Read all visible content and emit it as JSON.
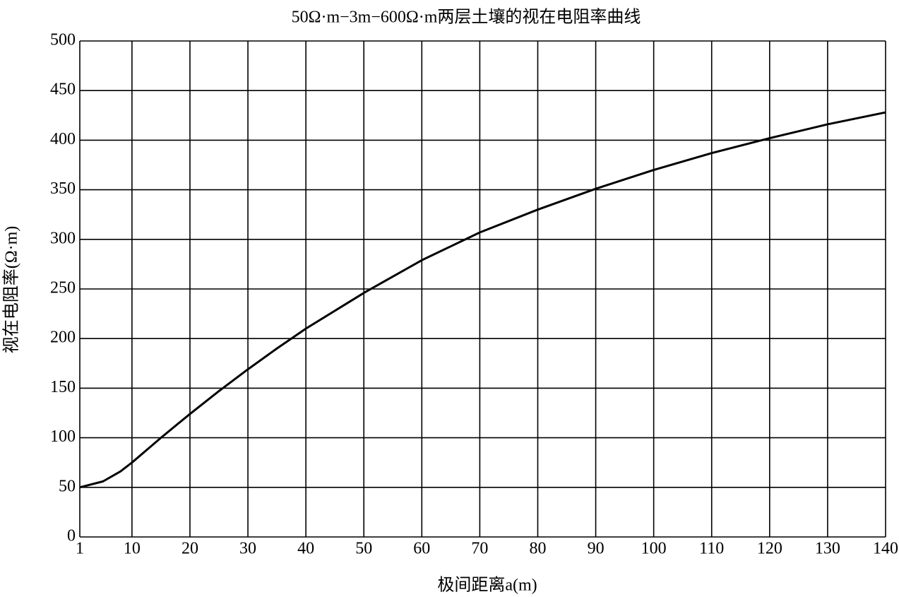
{
  "chart_data": {
    "type": "line",
    "title": "50Ω·m−3m−600Ω·m两层土壤的视在电阻率曲线",
    "x_label": "极间距离a(m)",
    "y_label": "视在电阻率(Ω·m)",
    "x": [
      1,
      5,
      8,
      10,
      15,
      20,
      25,
      30,
      35,
      40,
      50,
      60,
      70,
      80,
      90,
      100,
      110,
      120,
      130,
      140
    ],
    "series": [
      {
        "color": "#000000",
        "values": [
          50,
          56,
          66,
          75,
          100,
          124,
          147,
          169,
          190,
          210,
          246,
          279,
          307,
          330,
          351,
          370,
          387,
          402,
          416,
          428
        ]
      }
    ],
    "xlim": [
      1,
      140
    ],
    "xticks": [
      1,
      10,
      20,
      30,
      40,
      50,
      60,
      70,
      80,
      90,
      100,
      110,
      120,
      130,
      140
    ],
    "ylim": [
      0,
      500
    ],
    "yticks": [
      0,
      50,
      100,
      150,
      200,
      250,
      300,
      350,
      400,
      450,
      500
    ],
    "grid": true
  }
}
